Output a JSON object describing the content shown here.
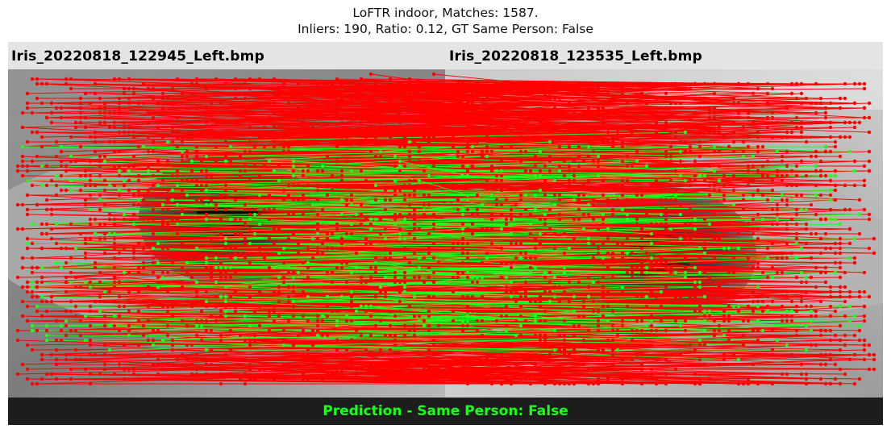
{
  "figure": {
    "title_line1": "LoFTR indoor, Matches: 1587.",
    "title_line2": "Inliers: 190, Ratio: 0.12, GT Same Person: False"
  },
  "images": {
    "left_filename": "Iris_20220818_122945_Left.bmp",
    "right_filename": "Iris_20220818_123535_Left.bmp"
  },
  "matches": {
    "total": 1587,
    "inliers": 190,
    "outliers": 1397,
    "ratio": 0.12,
    "outlier_color": "#ff0000",
    "inlier_color": "#1eff1e"
  },
  "prediction": {
    "text": "Prediction - Same Person: False",
    "color": "#1aff1a"
  },
  "colors": {
    "header_background": "#e4e4e4",
    "footer_background": "#1d1d1d"
  }
}
